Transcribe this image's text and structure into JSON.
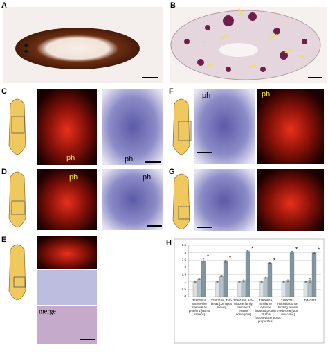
{
  "panel_labels": [
    "A",
    "B",
    "C",
    "D",
    "E",
    "F",
    "G",
    "H"
  ],
  "image_labels": [
    "ph",
    "ph",
    "ph",
    "ph",
    "ph",
    "ph",
    "merge"
  ],
  "chart_data": {
    "type": "bar",
    "categories": [
      "32903884, Sam68-like mammalian protein 1 [Homo sapiens]",
      "32903158, TAF-beta1 [Xenopus laevis]",
      "32901296, H2A histone family, member Z [Rattus norvegicus]",
      "32900869, similar to cytokine induced protein 29 kDa [Strongylocentrotus purpuratus]",
      "32900731, retinoblastoma-binding protein mRbAp48 [Mus musculus]",
      "DjMCM2"
    ],
    "series": [
      {
        "color": "#dde0e3",
        "values": [
          1.0,
          1.0,
          1.0,
          1.0,
          1.0,
          1.0
        ],
        "errors": [
          0.02,
          0.02,
          0.02,
          0.02,
          0.02,
          0.02
        ]
      },
      {
        "color": "#b4c0c7",
        "values": [
          1.2,
          1.4,
          1.1,
          1.3,
          1.1,
          1.1
        ],
        "errors": [
          0.05,
          0.05,
          0.1,
          0.1,
          0.1,
          0.15
        ]
      },
      {
        "color": "#80959f",
        "values": [
          2.45,
          2.4,
          3.1,
          2.3,
          3.0,
          3.0
        ],
        "errors": [
          0.15,
          0.08,
          0.05,
          0.05,
          0.1,
          0.05
        ]
      }
    ],
    "annotations": [
      "*",
      "*",
      "*",
      "*",
      "*",
      "*"
    ],
    "ylim": [
      0,
      3.5
    ],
    "yticks": [
      0,
      0.5,
      1,
      1.5,
      2,
      2.5,
      3,
      3.5
    ],
    "grid": true
  }
}
